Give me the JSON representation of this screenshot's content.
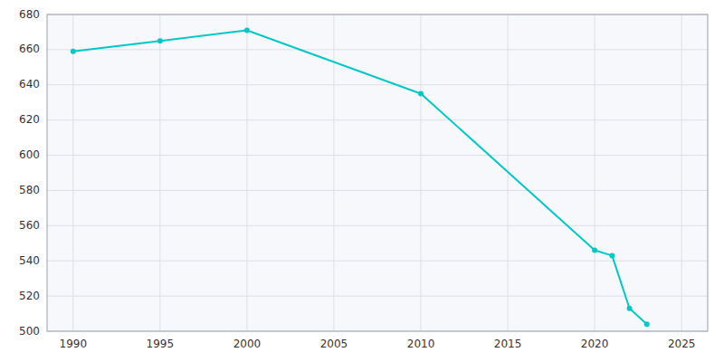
{
  "chart_data": {
    "type": "line",
    "x": [
      1990,
      1995,
      2000,
      2010,
      2020,
      2021,
      2022,
      2023
    ],
    "values": [
      659,
      665,
      671,
      635,
      546,
      543,
      513,
      504
    ],
    "color": "#00c8c8",
    "marker": "circle",
    "xlim": [
      1988.5,
      2026.5
    ],
    "ylim": [
      500,
      680
    ],
    "xticks": [
      1990,
      1995,
      2000,
      2005,
      2010,
      2015,
      2020,
      2025
    ],
    "yticks": [
      500,
      520,
      540,
      560,
      580,
      600,
      620,
      640,
      660,
      680
    ],
    "grid": true
  }
}
